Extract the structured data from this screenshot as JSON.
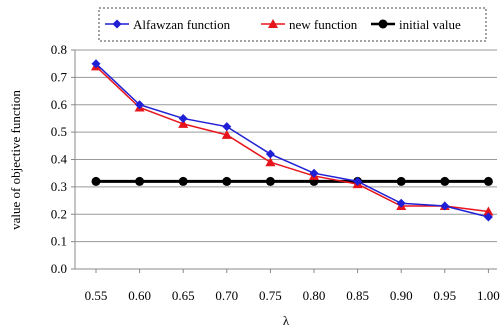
{
  "chart_data": {
    "type": "line",
    "x": [
      0.55,
      0.6,
      0.65,
      0.7,
      0.75,
      0.8,
      0.85,
      0.9,
      0.95,
      1.0
    ],
    "x_tick_labels": [
      "0.55",
      "0.60",
      "0.65",
      "0.70",
      "0.75",
      "0.80",
      "0.85",
      "0.90",
      "0.95",
      "1.00"
    ],
    "y_tick_labels": [
      "0.0",
      "0.1",
      "0.2",
      "0.3",
      "0.4",
      "0.5",
      "0.6",
      "0.7",
      "0.8"
    ],
    "ylim": [
      0.0,
      0.8
    ],
    "xlabel": "λ",
    "ylabel": "value of objective function",
    "grid": "horizontal",
    "legend_position": "top",
    "series": [
      {
        "name": "Alfawzan function",
        "color": "#1f1fd6",
        "marker": "diamond",
        "values": [
          0.75,
          0.6,
          0.55,
          0.52,
          0.42,
          0.35,
          0.32,
          0.24,
          0.23,
          0.19
        ]
      },
      {
        "name": "new function",
        "color": "#e8141c",
        "marker": "triangle",
        "values": [
          0.74,
          0.59,
          0.53,
          0.49,
          0.39,
          0.34,
          0.31,
          0.23,
          0.23,
          0.21
        ]
      },
      {
        "name": "initial value",
        "color": "#000000",
        "marker": "circle",
        "values": [
          0.32,
          0.32,
          0.32,
          0.32,
          0.32,
          0.32,
          0.32,
          0.32,
          0.32,
          0.32
        ]
      }
    ]
  }
}
